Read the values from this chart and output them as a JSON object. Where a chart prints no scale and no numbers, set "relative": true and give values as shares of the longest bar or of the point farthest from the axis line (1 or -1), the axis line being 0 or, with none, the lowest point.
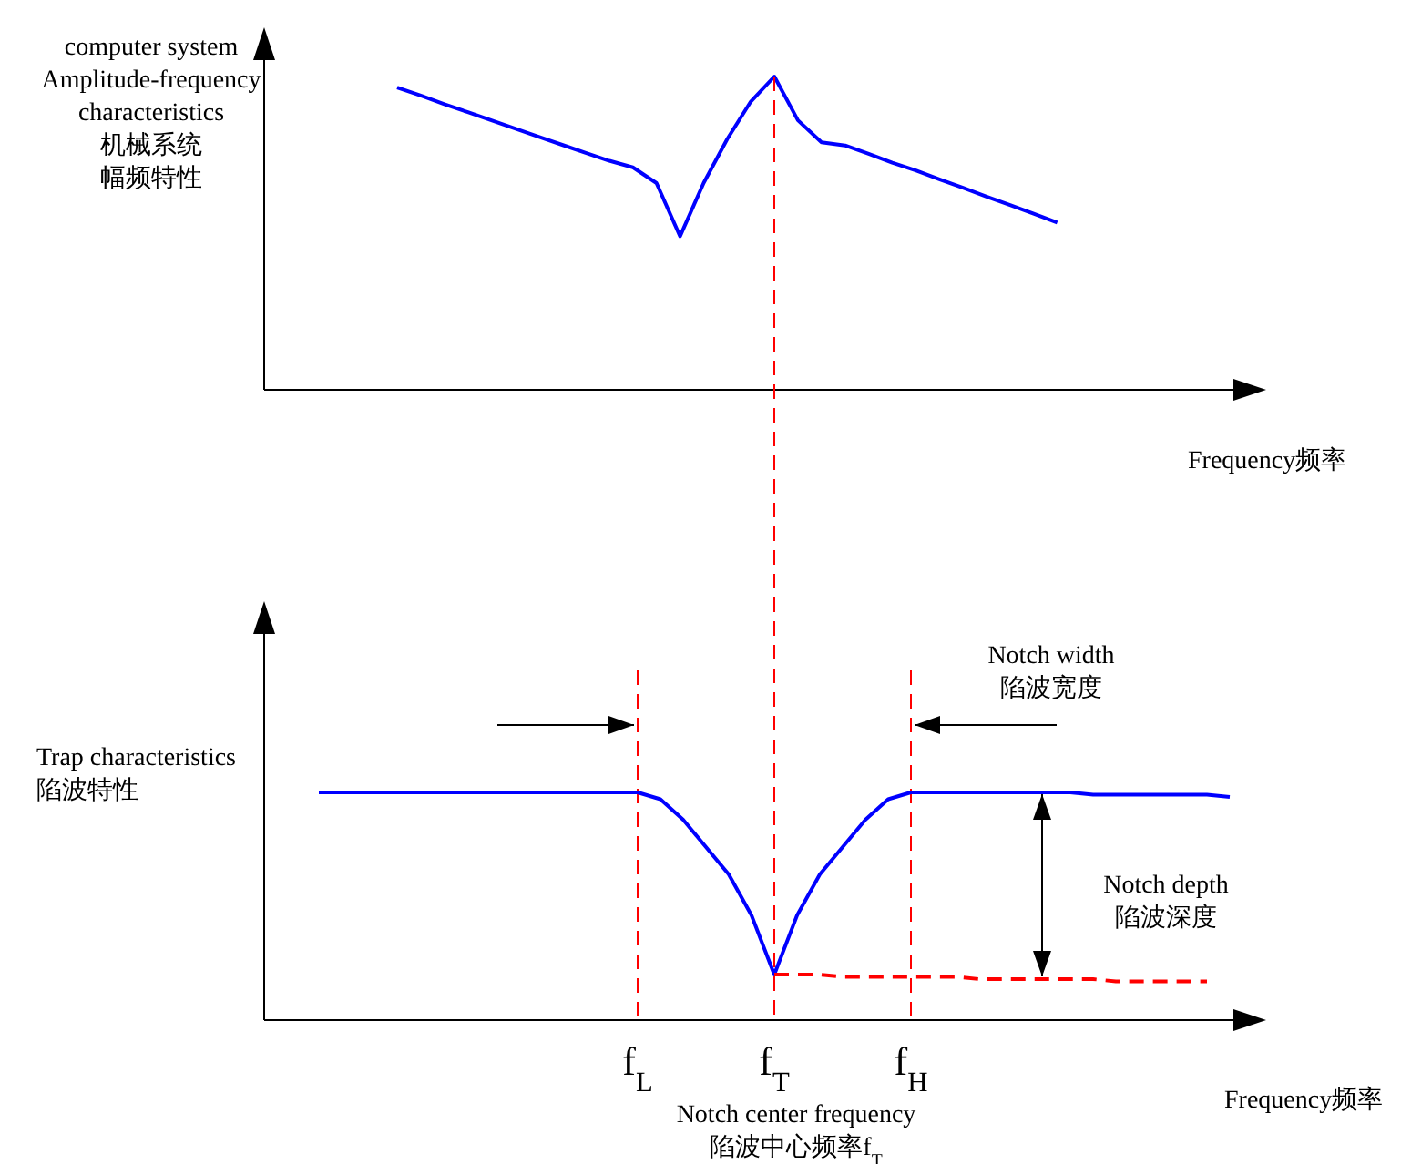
{
  "chart_data": [
    {
      "type": "line",
      "relative": true,
      "ylabel": "computer system\nAmplitude-frequency\ncharacteristics\n机械系统幅频特性",
      "xlabel": "Frequency频率",
      "tick_labels": false,
      "categories": [
        null,
        null,
        null,
        null,
        null,
        null,
        null,
        null,
        null,
        null,
        null,
        null,
        null,
        null,
        null,
        null,
        null,
        null,
        null,
        null,
        null,
        null,
        null,
        null,
        null,
        null,
        null,
        null,
        null
      ],
      "series": [
        {
          "color": "#0000ff",
          "line_style": "solid",
          "values": [
            0.965,
            0.939,
            0.912,
            0.886,
            0.86,
            0.834,
            0.808,
            0.782,
            0.756,
            0.731,
            0.71,
            0.66,
            0.49,
            0.66,
            0.8,
            0.92,
            1,
            0.86,
            0.79,
            0.78,
            0.753,
            0.725,
            0.7,
            0.672,
            0.645,
            0.617,
            0.59,
            0.562,
            0.534
          ]
        }
      ]
    },
    {
      "type": "line",
      "relative": true,
      "ylabel": "Trap characteristics\n陷波特性",
      "xlabel": "Frequency频率",
      "tick_labels": "x",
      "categories": [
        null,
        null,
        null,
        null,
        null,
        null,
        null,
        null,
        null,
        null,
        null,
        null,
        null,
        null,
        "f$_{L}$",
        null,
        null,
        null,
        null,
        null,
        "f$_{T}$",
        null,
        null,
        null,
        null,
        null,
        "f$_{H}$",
        null,
        null,
        null,
        null,
        null,
        null,
        null,
        null,
        null,
        null,
        null,
        null,
        null,
        null
      ],
      "series": [
        {
          "color": "#0000ff",
          "line_style": "solid",
          "values": [
            1,
            1,
            1,
            1,
            1,
            1,
            1,
            1,
            1,
            1,
            1,
            1,
            1,
            1,
            1,
            0.97,
            0.88,
            0.76,
            0.64,
            0.46,
            0.2,
            0.46,
            0.64,
            0.76,
            0.88,
            0.97,
            1,
            1,
            1,
            1,
            1,
            1,
            1,
            1,
            0.99,
            0.99,
            0.99,
            0.99,
            0.99,
            0.99,
            0.98
          ]
        },
        {
          "color": "#ff0000",
          "line_style": "dashed",
          "values": [
            null,
            null,
            null,
            null,
            null,
            null,
            null,
            null,
            null,
            null,
            null,
            null,
            null,
            null,
            null,
            null,
            null,
            null,
            null,
            null,
            0.2,
            0.2,
            0.2,
            0.19,
            0.19,
            0.19,
            0.19,
            0.19,
            0.19,
            0.18,
            0.18,
            0.18,
            0.18,
            0.18,
            0.18,
            0.17,
            0.17,
            0.17,
            0.17,
            0.17,
            null
          ]
        }
      ],
      "ref_lines": [
        {
          "axis": "x",
          "value": "f$_{L}$",
          "color": "#ff0000",
          "line_style": "dashed"
        },
        {
          "axis": "x",
          "value": "f$_{T}$",
          "color": "#ff0000",
          "line_style": "dashed"
        },
        {
          "axis": "x",
          "value": "f$_{H}$",
          "color": "#ff0000",
          "line_style": "dashed"
        }
      ],
      "annotations": [
        "Notch width\n陷波宽度",
        "Notch depth\n陷波深度",
        "Notch center frequency\n陷波中心频率f$_{T}$"
      ]
    }
  ]
}
